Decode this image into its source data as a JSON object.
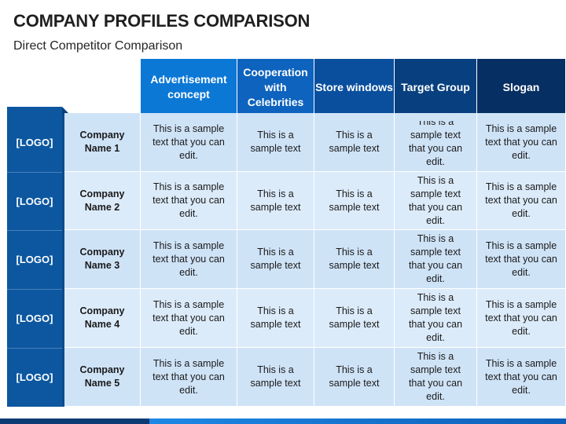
{
  "title": "COMPANY PROFILES COMPARISON",
  "subtitle": "Direct Competitor Comparison",
  "colors": {
    "header": [
      "#0c78d6",
      "#0d63bd",
      "#0a4f9e",
      "#08407f",
      "#062f63"
    ],
    "logo_column": "#0c57a0",
    "row_light": "#cfe3f7",
    "row_lighter": "#dcebfa"
  },
  "headers": [
    "Advertisement concept",
    "Cooperation with Celebrities",
    "Store windows",
    "Target Group",
    "Slogan"
  ],
  "rows": [
    {
      "logo": "[LOGO]",
      "name": "Company Name 1",
      "cells": [
        "This is a sample text that you can edit.",
        "This is a sample text",
        "This is a sample text",
        "This is a sample text that you can edit.",
        "This is a sample text that you can edit."
      ]
    },
    {
      "logo": "[LOGO]",
      "name": "Company Name 2",
      "cells": [
        "This is a sample text that you can edit.",
        "This is a sample text",
        "This is a sample text",
        "This is a sample text that you can edit.",
        "This is a sample text that you can edit."
      ]
    },
    {
      "logo": "[LOGO]",
      "name": "Company Name 3",
      "cells": [
        "This is a sample text that you can edit.",
        "This is a sample text",
        "This is a sample text",
        "This is a sample text that you can edit.",
        "This is a sample text that you can edit."
      ]
    },
    {
      "logo": "[LOGO]",
      "name": "Company Name 4",
      "cells": [
        "This is a sample text that you can edit.",
        "This is a sample text",
        "This is a sample text",
        "This is a sample text that you can edit.",
        "This is a sample text that you can edit."
      ]
    },
    {
      "logo": "[LOGO]",
      "name": "Company Name 5",
      "cells": [
        "This is a sample text that you can edit.",
        "This is a sample text",
        "This is a sample text",
        "This is a sample text that you can edit.",
        "This is a sample text that you can edit."
      ]
    }
  ]
}
